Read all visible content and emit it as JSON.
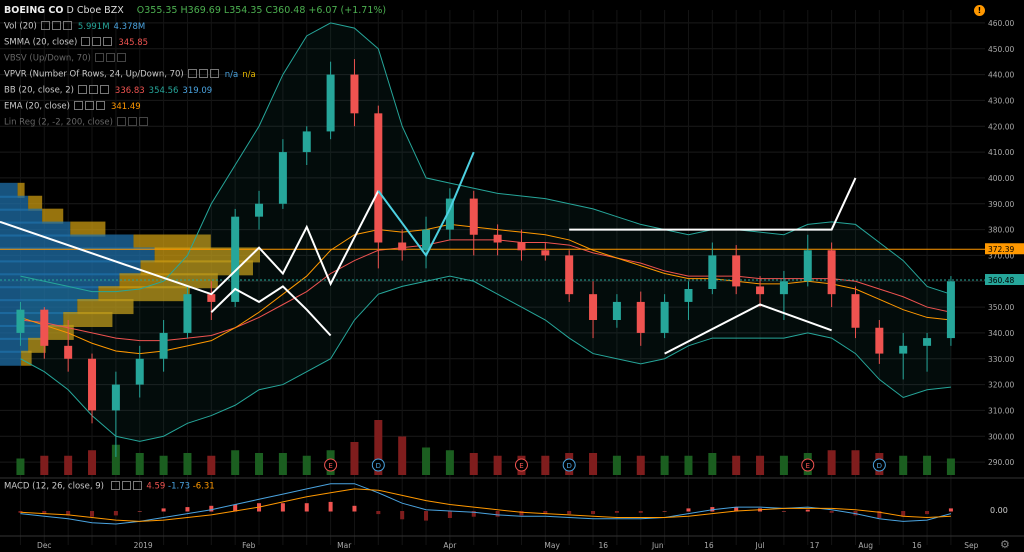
{
  "symbol": {
    "name": "BOEING CO",
    "interval": "D",
    "exchange": "Cboe BZX"
  },
  "ohlc": {
    "open": "O355.35",
    "high": "H369.69",
    "low": "L354.35",
    "close": "C360.48",
    "change": "+6.07 (+1.71%)"
  },
  "indicators": [
    {
      "label": "Vol (20)",
      "values": [
        "5.991M",
        "4.378M"
      ],
      "colors": [
        "#26a69a",
        "#4aa3df"
      ],
      "hidden": false
    },
    {
      "label": "SMMA (20, close)",
      "values": [
        "345.85"
      ],
      "colors": [
        "#ef5350"
      ],
      "hidden": false
    },
    {
      "label": "VBSV (Up/Down, 70)",
      "values": [],
      "colors": [],
      "hidden": true
    },
    {
      "label": "VPVR (Number Of Rows, 24, Up/Down, 70)",
      "values": [
        "n/a",
        "n/a"
      ],
      "colors": [
        "#4aa3df",
        "#e5b700"
      ],
      "hidden": false
    },
    {
      "label": "BB (20, close, 2)",
      "values": [
        "336.83",
        "354.56",
        "319.09"
      ],
      "colors": [
        "#ef5350",
        "#26a69a",
        "#4aa3df"
      ],
      "hidden": false
    },
    {
      "label": "EMA (20, close)",
      "values": [
        "341.49"
      ],
      "colors": [
        "#ff9800"
      ],
      "hidden": false
    },
    {
      "label": "Lin Reg (2, -2, 200, close)",
      "values": [],
      "colors": [],
      "hidden": true
    }
  ],
  "macd": {
    "label": "MACD (12, 26, close, 9)",
    "values": [
      "4.59",
      "-1.73",
      "-6.31"
    ],
    "colors": [
      "#ef5350",
      "#4aa3df",
      "#ff9800"
    ],
    "zero_label": "0.00"
  },
  "price_axis": {
    "ticks": [
      "460.00",
      "450.00",
      "440.00",
      "430.00",
      "420.00",
      "410.00",
      "400.00",
      "390.00",
      "380.00",
      "370.00",
      "360.00",
      "350.00",
      "340.00",
      "330.00",
      "320.00",
      "310.00",
      "300.00",
      "290.00"
    ]
  },
  "last_prices": [
    {
      "value": "372.39",
      "price": 372.39,
      "color": "#ff9800"
    },
    {
      "value": "360.48",
      "price": 360.48,
      "color": "#26a69a"
    }
  ],
  "time_axis": {
    "labels": [
      "Dec",
      "2019",
      "Feb",
      "Mar",
      "Apr",
      "May",
      "Jun",
      "Jul",
      "Aug",
      "Sep",
      "16",
      "16",
      "17",
      "16"
    ]
  },
  "events": [
    {
      "type": "E",
      "color": "#ef5350"
    },
    {
      "type": "D",
      "color": "#4aa3df"
    },
    {
      "type": "E",
      "color": "#ef5350"
    },
    {
      "type": "D",
      "color": "#4aa3df"
    },
    {
      "type": "E",
      "color": "#ef5350"
    },
    {
      "type": "D",
      "color": "#4aa3df"
    }
  ],
  "chart_data": {
    "type": "candlestick",
    "title": "BOEING CO · D · Cboe BZX",
    "ylim": [
      285,
      465
    ],
    "x_range": [
      "2018-11-20",
      "2019-09-05"
    ],
    "ohlc": [
      [
        "2018-11-26",
        340,
        352,
        335,
        349
      ],
      [
        "2018-12-03",
        349,
        350,
        330,
        335
      ],
      [
        "2018-12-10",
        335,
        345,
        325,
        330
      ],
      [
        "2018-12-17",
        330,
        332,
        305,
        310
      ],
      [
        "2018-12-24",
        310,
        325,
        292,
        320
      ],
      [
        "2018-12-31",
        320,
        335,
        315,
        330
      ],
      [
        "2019-01-07",
        330,
        345,
        325,
        340
      ],
      [
        "2019-01-14",
        340,
        358,
        338,
        355
      ],
      [
        "2019-01-21",
        355,
        360,
        345,
        352
      ],
      [
        "2019-01-28",
        352,
        388,
        350,
        385
      ],
      [
        "2019-02-04",
        385,
        395,
        380,
        390
      ],
      [
        "2019-02-11",
        390,
        415,
        388,
        410
      ],
      [
        "2019-02-18",
        410,
        420,
        405,
        418
      ],
      [
        "2019-02-25",
        418,
        445,
        415,
        440
      ],
      [
        "2019-03-04",
        440,
        446,
        420,
        425
      ],
      [
        "2019-03-11",
        425,
        428,
        365,
        375
      ],
      [
        "2019-03-18",
        375,
        380,
        368,
        372
      ],
      [
        "2019-03-25",
        372,
        385,
        365,
        380
      ],
      [
        "2019-04-01",
        380,
        396,
        376,
        392
      ],
      [
        "2019-04-08",
        392,
        395,
        370,
        378
      ],
      [
        "2019-04-15",
        378,
        382,
        370,
        375
      ],
      [
        "2019-04-22",
        375,
        380,
        368,
        372
      ],
      [
        "2019-04-29",
        372,
        375,
        368,
        370
      ],
      [
        "2019-05-06",
        370,
        372,
        352,
        355
      ],
      [
        "2019-05-13",
        355,
        360,
        338,
        345
      ],
      [
        "2019-05-20",
        345,
        355,
        342,
        352
      ],
      [
        "2019-05-27",
        352,
        356,
        335,
        340
      ],
      [
        "2019-06-03",
        340,
        355,
        338,
        352
      ],
      [
        "2019-06-10",
        352,
        360,
        345,
        357
      ],
      [
        "2019-06-17",
        357,
        375,
        355,
        370
      ],
      [
        "2019-06-24",
        370,
        374,
        355,
        358
      ],
      [
        "2019-07-01",
        358,
        362,
        350,
        355
      ],
      [
        "2019-07-08",
        355,
        364,
        345,
        360
      ],
      [
        "2019-07-15",
        360,
        378,
        358,
        372
      ],
      [
        "2019-07-22",
        372,
        375,
        350,
        355
      ],
      [
        "2019-07-29",
        355,
        358,
        338,
        342
      ],
      [
        "2019-08-05",
        342,
        345,
        328,
        332
      ],
      [
        "2019-08-12",
        332,
        340,
        322,
        335
      ],
      [
        "2019-08-19",
        335,
        340,
        325,
        338
      ],
      [
        "2019-08-26",
        338,
        362,
        335,
        360
      ]
    ],
    "series": [
      {
        "name": "EMA (20, close)",
        "color": "#ff9800"
      },
      {
        "name": "SMMA (20, close)",
        "color": "#ef5350"
      },
      {
        "name": "BB (20, close, 2)",
        "color": "#26a69a"
      }
    ],
    "ema": [
      346,
      343,
      340,
      336,
      333,
      332,
      333,
      335,
      337,
      342,
      348,
      355,
      362,
      372,
      378,
      380,
      379,
      380,
      382,
      381,
      380,
      379,
      378,
      376,
      372,
      369,
      366,
      363,
      361,
      361,
      360,
      359,
      359,
      360,
      359,
      357,
      353,
      349,
      346,
      345
    ],
    "smma": [
      345,
      344,
      342,
      340,
      338,
      337,
      337,
      338,
      339,
      342,
      346,
      351,
      356,
      363,
      368,
      372,
      373,
      374,
      376,
      376,
      376,
      375,
      375,
      374,
      371,
      369,
      367,
      364,
      362,
      362,
      362,
      361,
      361,
      361,
      361,
      360,
      357,
      354,
      350,
      348
    ],
    "bb_upper": [
      362,
      360,
      358,
      356,
      356,
      357,
      360,
      370,
      390,
      405,
      420,
      440,
      455,
      460,
      458,
      450,
      420,
      400,
      398,
      396,
      394,
      393,
      392,
      390,
      388,
      385,
      382,
      380,
      378,
      380,
      380,
      379,
      378,
      382,
      383,
      382,
      375,
      368,
      358,
      355
    ],
    "bb_lower": [
      330,
      325,
      318,
      308,
      300,
      298,
      300,
      305,
      308,
      312,
      318,
      320,
      325,
      330,
      345,
      355,
      358,
      360,
      362,
      360,
      355,
      350,
      345,
      338,
      332,
      330,
      328,
      330,
      335,
      338,
      338,
      338,
      338,
      340,
      338,
      332,
      322,
      315,
      318,
      319
    ],
    "volume": [
      6,
      7,
      7,
      9,
      11,
      8,
      7,
      8,
      7,
      9,
      8,
      8,
      7,
      9,
      12,
      20,
      14,
      10,
      9,
      8,
      7,
      7,
      7,
      8,
      8,
      7,
      7,
      7,
      7,
      8,
      7,
      7,
      7,
      8,
      9,
      9,
      8,
      7,
      7,
      6
    ],
    "macd": [
      -2,
      -4,
      -6,
      -9,
      -10,
      -8,
      -5,
      -2,
      1,
      5,
      9,
      13,
      17,
      21,
      21,
      14,
      6,
      1,
      0,
      -1,
      -3,
      -4,
      -4,
      -5,
      -6,
      -6,
      -6,
      -5,
      -2,
      1,
      3,
      3,
      2,
      3,
      1,
      -2,
      -6,
      -8,
      -7,
      -2
    ],
    "signal": [
      -1,
      -2,
      -3,
      -5,
      -7,
      -8,
      -7,
      -5,
      -3,
      0,
      3,
      7,
      11,
      14,
      17,
      16,
      12,
      8,
      5,
      3,
      1,
      -1,
      -2,
      -3,
      -4,
      -5,
      -5,
      -5,
      -4,
      -2,
      0,
      1,
      2,
      2,
      2,
      1,
      -1,
      -4,
      -5,
      -4
    ],
    "price_levels": [
      {
        "name": "resistance",
        "value": 372.39,
        "color": "#ff9800"
      },
      {
        "name": "last",
        "value": 360.48,
        "color": "#26a69a"
      }
    ],
    "projections": [
      {
        "color": "#ffffff",
        "points": [
          [
            "2018-11-20",
            383
          ],
          [
            "2019-01-21",
            355
          ],
          [
            "2019-02-04",
            373
          ],
          [
            "2019-02-11",
            363
          ],
          [
            "2019-02-18",
            381
          ],
          [
            "2019-02-25",
            359
          ],
          [
            "2019-03-11",
            395
          ]
        ]
      },
      {
        "color": "#ffffff",
        "points": [
          [
            "2019-01-21",
            348
          ],
          [
            "2019-01-28",
            357
          ],
          [
            "2019-02-04",
            352
          ],
          [
            "2019-02-11",
            358
          ],
          [
            "2019-02-18",
            349
          ],
          [
            "2019-02-25",
            339
          ]
        ]
      },
      {
        "color": "#4dd0e1",
        "points": [
          [
            "2019-03-11",
            395
          ],
          [
            "2019-03-25",
            370
          ],
          [
            "2019-04-01",
            388
          ],
          [
            "2019-04-08",
            410
          ]
        ]
      },
      {
        "color": "#ffffff",
        "points": [
          [
            "2019-05-06",
            380
          ],
          [
            "2019-07-08",
            380
          ],
          [
            "2019-07-22",
            380
          ],
          [
            "2019-07-29",
            400
          ]
        ]
      },
      {
        "color": "#ffffff",
        "points": [
          [
            "2019-06-03",
            332
          ],
          [
            "2019-07-01",
            351
          ],
          [
            "2019-07-22",
            341
          ]
        ]
      }
    ],
    "volume_profile": [
      {
        "price": 395,
        "up": 5,
        "down": 2
      },
      {
        "price": 390,
        "up": 8,
        "down": 4
      },
      {
        "price": 385,
        "up": 12,
        "down": 6
      },
      {
        "price": 380,
        "up": 20,
        "down": 10
      },
      {
        "price": 375,
        "up": 38,
        "down": 22
      },
      {
        "price": 370,
        "up": 44,
        "down": 30
      },
      {
        "price": 365,
        "up": 40,
        "down": 32
      },
      {
        "price": 360,
        "up": 34,
        "down": 28
      },
      {
        "price": 355,
        "up": 28,
        "down": 26
      },
      {
        "price": 350,
        "up": 22,
        "down": 16
      },
      {
        "price": 345,
        "up": 18,
        "down": 14
      },
      {
        "price": 340,
        "up": 12,
        "down": 9
      },
      {
        "price": 335,
        "up": 8,
        "down": 5
      },
      {
        "price": 330,
        "up": 6,
        "down": 3
      }
    ]
  }
}
